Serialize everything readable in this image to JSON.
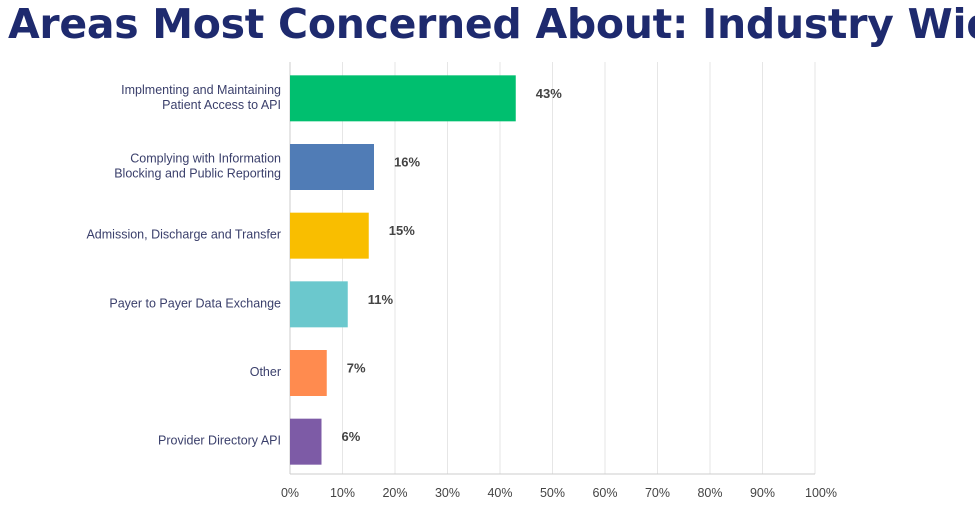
{
  "chart_data": {
    "type": "bar",
    "orientation": "horizontal",
    "title": "Areas Most Concerned About: Industry Wide",
    "categories": [
      [
        "Implmenting and Maintaining",
        "Patient Access to API"
      ],
      [
        "Complying with Information",
        "Blocking  and Public Reporting"
      ],
      [
        "Admission, Discharge and Transfer"
      ],
      [
        "Payer to Payer Data Exchange"
      ],
      [
        "Other"
      ],
      [
        "Provider Directory API"
      ]
    ],
    "values": [
      43,
      16,
      15,
      11,
      7,
      6
    ],
    "value_labels": [
      "43%",
      "16%",
      "15%",
      "11%",
      "7%",
      "6%"
    ],
    "colors": [
      "#00bf6f",
      "#507cb6",
      "#f9be00",
      "#6bc8cd",
      "#ff8b4f",
      "#7d5ba6"
    ],
    "xlim": [
      0,
      100
    ],
    "xticks": [
      "0%",
      "10%",
      "20%",
      "30%",
      "40%",
      "50%",
      "60%",
      "70%",
      "80%",
      "90%",
      "100%"
    ],
    "grid": true,
    "legend": "none"
  }
}
